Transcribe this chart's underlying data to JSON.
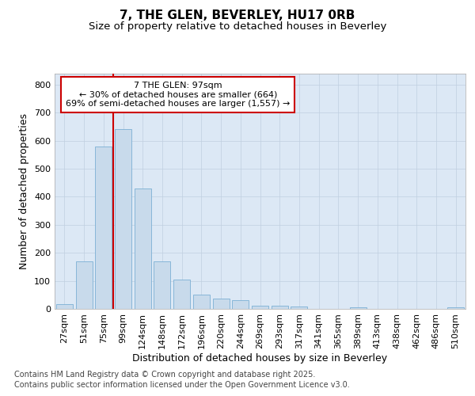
{
  "title_line1": "7, THE GLEN, BEVERLEY, HU17 0RB",
  "title_line2": "Size of property relative to detached houses in Beverley",
  "xlabel": "Distribution of detached houses by size in Beverley",
  "ylabel": "Number of detached properties",
  "bar_color": "#c8daeb",
  "bar_edgecolor": "#7bafd4",
  "grid_color": "#c0cfe0",
  "background_color": "#dce8f5",
  "vline_color": "#cc0000",
  "annotation_box_text": "7 THE GLEN: 97sqm\n← 30% of detached houses are smaller (664)\n69% of semi-detached houses are larger (1,557) →",
  "annotation_box_color": "#cc0000",
  "annotation_box_facecolor": "white",
  "categories": [
    "27sqm",
    "51sqm",
    "75sqm",
    "99sqm",
    "124sqm",
    "148sqm",
    "172sqm",
    "196sqm",
    "220sqm",
    "244sqm",
    "269sqm",
    "293sqm",
    "317sqm",
    "341sqm",
    "365sqm",
    "389sqm",
    "413sqm",
    "438sqm",
    "462sqm",
    "486sqm",
    "510sqm"
  ],
  "values": [
    18,
    170,
    578,
    640,
    428,
    170,
    105,
    52,
    38,
    32,
    12,
    10,
    8,
    0,
    0,
    5,
    0,
    0,
    0,
    0,
    5
  ],
  "ylim": [
    0,
    840
  ],
  "yticks": [
    0,
    100,
    200,
    300,
    400,
    500,
    600,
    700,
    800
  ],
  "footer_line1": "Contains HM Land Registry data © Crown copyright and database right 2025.",
  "footer_line2": "Contains public sector information licensed under the Open Government Licence v3.0.",
  "title_fontsize": 11,
  "subtitle_fontsize": 9.5,
  "axis_label_fontsize": 9,
  "tick_fontsize": 8,
  "footer_fontsize": 7
}
